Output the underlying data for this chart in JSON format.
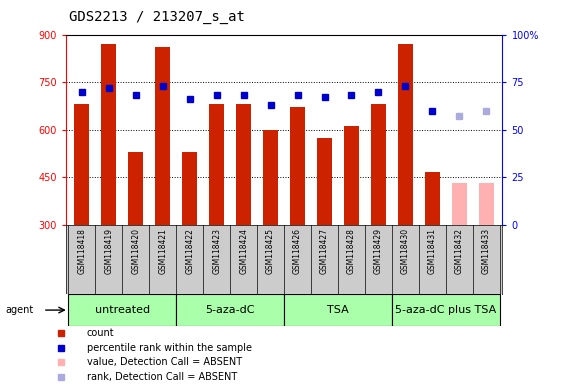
{
  "title": "GDS2213 / 213207_s_at",
  "samples": [
    "GSM118418",
    "GSM118419",
    "GSM118420",
    "GSM118421",
    "GSM118422",
    "GSM118423",
    "GSM118424",
    "GSM118425",
    "GSM118426",
    "GSM118427",
    "GSM118428",
    "GSM118429",
    "GSM118430",
    "GSM118431",
    "GSM118432",
    "GSM118433"
  ],
  "counts": [
    680,
    870,
    530,
    860,
    530,
    680,
    680,
    600,
    670,
    575,
    610,
    680,
    870,
    465,
    430,
    430
  ],
  "ranks": [
    70,
    72,
    68,
    73,
    66,
    68,
    68,
    63,
    68,
    67,
    68,
    70,
    73,
    60,
    57,
    60
  ],
  "absent_flags": [
    false,
    false,
    false,
    false,
    false,
    false,
    false,
    false,
    false,
    false,
    false,
    false,
    false,
    false,
    true,
    true
  ],
  "absent_rank_flags": [
    false,
    false,
    false,
    false,
    false,
    false,
    false,
    false,
    false,
    false,
    false,
    false,
    false,
    false,
    true,
    true
  ],
  "groups": [
    {
      "label": "untreated",
      "start": 0,
      "end": 4
    },
    {
      "label": "5-aza-dC",
      "start": 4,
      "end": 8
    },
    {
      "label": "TSA",
      "start": 8,
      "end": 12
    },
    {
      "label": "5-aza-dC plus TSA",
      "start": 12,
      "end": 16
    }
  ],
  "ylim_left": [
    300,
    900
  ],
  "ylim_right": [
    0,
    100
  ],
  "yticks_left": [
    300,
    450,
    600,
    750,
    900
  ],
  "yticks_right": [
    0,
    25,
    50,
    75,
    100
  ],
  "bar_color": "#cc2200",
  "bar_color_absent": "#ffb0b0",
  "rank_color": "#0000cc",
  "rank_color_absent": "#aaaadd",
  "group_color": "#aaffaa",
  "legend_items": [
    {
      "color": "#cc2200",
      "label": "count"
    },
    {
      "color": "#0000cc",
      "label": "percentile rank within the sample"
    },
    {
      "color": "#ffb0b0",
      "label": "value, Detection Call = ABSENT"
    },
    {
      "color": "#aaaadd",
      "label": "rank, Detection Call = ABSENT"
    }
  ],
  "title_fontsize": 10,
  "tick_fontsize": 7,
  "label_fontsize": 8,
  "group_label_fontsize": 8
}
